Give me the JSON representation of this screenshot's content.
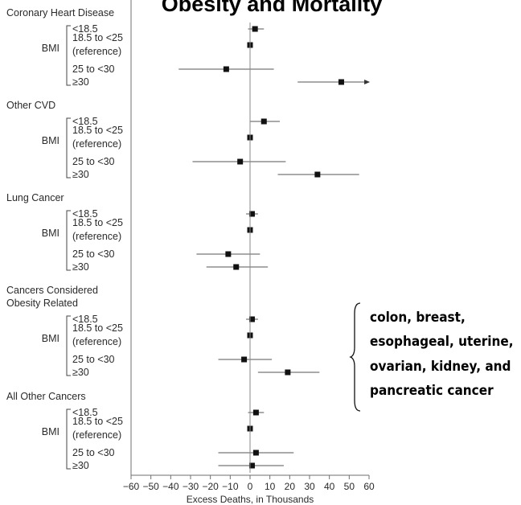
{
  "title": "Obesity and Mortality",
  "chart_data": {
    "type": "forest",
    "xlabel": "Excess Deaths, in Thousands",
    "xlim": [
      -60,
      60
    ],
    "xticks": [
      "−60",
      "−50",
      "−40",
      "−30",
      "−20",
      "−10",
      "0",
      "10",
      "20",
      "30",
      "40",
      "50",
      "60"
    ],
    "bmi_label": "BMI",
    "groups": [
      {
        "name": "Coronary Heart Disease",
        "rows": [
          {
            "label": "<18.5",
            "value": 2.5,
            "ci": [
              -1,
              7
            ]
          },
          {
            "label": "18.5 to <25",
            "label2": "(reference)",
            "value": 0,
            "ci": null
          },
          {
            "label": "25 to <30",
            "value": -12,
            "ci": [
              -36,
              12
            ]
          },
          {
            "label": "≥30",
            "value": 46,
            "ci": [
              24,
              58
            ],
            "arrow": true
          }
        ]
      },
      {
        "name": "Other CVD",
        "rows": [
          {
            "label": "<18.5",
            "value": 7,
            "ci": [
              0,
              15
            ]
          },
          {
            "label": "18.5 to <25",
            "label2": "(reference)",
            "value": 0,
            "ci": null
          },
          {
            "label": "25 to <30",
            "value": -5,
            "ci": [
              -29,
              18
            ]
          },
          {
            "label": "≥30",
            "value": 34,
            "ci": [
              14,
              55
            ]
          }
        ]
      },
      {
        "name": "Lung Cancer",
        "rows": [
          {
            "label": "<18.5",
            "value": 1,
            "ci": [
              -2,
              4
            ]
          },
          {
            "label": "18.5 to <25",
            "label2": "(reference)",
            "value": 0,
            "ci": null
          },
          {
            "label": "25 to <30",
            "value": -11,
            "ci": [
              -27,
              5
            ]
          },
          {
            "label": "≥30",
            "value": -7,
            "ci": [
              -22,
              9
            ]
          }
        ]
      },
      {
        "name": "Cancers Considered",
        "name2": "Obesity Related",
        "rows": [
          {
            "label": "<18.5",
            "value": 1,
            "ci": [
              -2,
              4
            ]
          },
          {
            "label": "18.5 to <25",
            "label2": "(reference)",
            "value": 0,
            "ci": null
          },
          {
            "label": "25 to <30",
            "value": -3,
            "ci": [
              -16,
              11
            ]
          },
          {
            "label": "≥30",
            "value": 19,
            "ci": [
              4,
              35
            ]
          }
        ]
      },
      {
        "name": "All Other Cancers",
        "rows": [
          {
            "label": "<18.5",
            "value": 3,
            "ci": [
              -1,
              7
            ]
          },
          {
            "label": "18.5 to <25",
            "label2": "(reference)",
            "value": 0,
            "ci": null
          },
          {
            "label": "25 to <30",
            "value": 3,
            "ci": [
              -16,
              22
            ]
          },
          {
            "label": "≥30",
            "value": 1,
            "ci": [
              -16,
              17
            ]
          }
        ]
      }
    ]
  },
  "annotation": {
    "lines": [
      "colon, breast,",
      "esophageal, uterine,",
      "ovarian, kidney, and",
      "pancreatic cancer"
    ]
  }
}
